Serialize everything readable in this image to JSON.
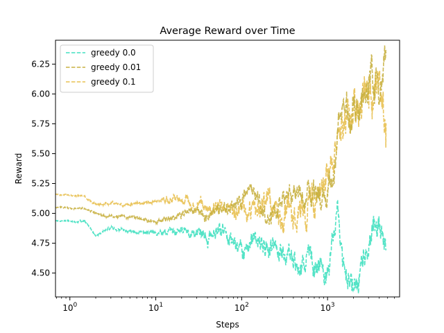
{
  "chart_data": {
    "type": "line",
    "title": "Average Reward over Time",
    "xlabel": "Steps",
    "ylabel": "Reward",
    "xscale": "log",
    "xlim": [
      0.68,
      6900
    ],
    "ylim": [
      4.3,
      6.45
    ],
    "grid": false,
    "legend_position": "top-left",
    "x_ticks": [
      {
        "value": 1,
        "base": "10",
        "exp": "0"
      },
      {
        "value": 10,
        "base": "10",
        "exp": "1"
      },
      {
        "value": 100,
        "base": "10",
        "exp": "2"
      },
      {
        "value": 1000,
        "base": "10",
        "exp": "3"
      }
    ],
    "y_ticks": [
      {
        "value": 4.5,
        "label": "4.50"
      },
      {
        "value": 4.75,
        "label": "4.75"
      },
      {
        "value": 5.0,
        "label": "5.00"
      },
      {
        "value": 5.25,
        "label": "5.25"
      },
      {
        "value": 5.5,
        "label": "5.50"
      },
      {
        "value": 5.75,
        "label": "5.75"
      },
      {
        "value": 6.0,
        "label": "6.00"
      },
      {
        "value": 6.25,
        "label": "6.25"
      }
    ],
    "series": [
      {
        "name": "greedy 0.0",
        "color": "#40E0C0",
        "anchors": [
          [
            0.68,
            4.94
          ],
          [
            1.5,
            4.93
          ],
          [
            2,
            4.81
          ],
          [
            3,
            4.88
          ],
          [
            5,
            4.85
          ],
          [
            10,
            4.84
          ],
          [
            20,
            4.85
          ],
          [
            30,
            4.84
          ],
          [
            40,
            4.77
          ],
          [
            50,
            4.85
          ],
          [
            60,
            4.86
          ],
          [
            70,
            4.82
          ],
          [
            80,
            4.77
          ],
          [
            100,
            4.7
          ],
          [
            130,
            4.76
          ],
          [
            170,
            4.75
          ],
          [
            200,
            4.7
          ],
          [
            250,
            4.72
          ],
          [
            300,
            4.67
          ],
          [
            400,
            4.62
          ],
          [
            500,
            4.58
          ],
          [
            600,
            4.63
          ],
          [
            700,
            4.55
          ],
          [
            800,
            4.6
          ],
          [
            900,
            4.5
          ],
          [
            1000,
            4.55
          ],
          [
            1100,
            4.72
          ],
          [
            1200,
            4.9
          ],
          [
            1300,
            5.02
          ],
          [
            1400,
            4.82
          ],
          [
            1500,
            4.6
          ],
          [
            1700,
            4.48
          ],
          [
            2000,
            4.4
          ],
          [
            2300,
            4.5
          ],
          [
            2600,
            4.6
          ],
          [
            3000,
            4.7
          ],
          [
            3300,
            4.85
          ],
          [
            3600,
            4.95
          ],
          [
            4000,
            4.9
          ],
          [
            4500,
            4.8
          ],
          [
            4800,
            4.72
          ]
        ],
        "noise": [
          0,
          0.005,
          0.015,
          0.06,
          0.08,
          0.1
        ]
      },
      {
        "name": "greedy 0.01",
        "color": "#C8B040",
        "anchors": [
          [
            0.68,
            5.05
          ],
          [
            1.5,
            5.04
          ],
          [
            2,
            5.0
          ],
          [
            3,
            4.98
          ],
          [
            5,
            4.97
          ],
          [
            10,
            4.93
          ],
          [
            20,
            4.99
          ],
          [
            30,
            5.02
          ],
          [
            40,
            4.98
          ],
          [
            60,
            5.04
          ],
          [
            80,
            5.06
          ],
          [
            100,
            5.1
          ],
          [
            130,
            5.22
          ],
          [
            150,
            5.15
          ],
          [
            200,
            4.93
          ],
          [
            250,
            5.04
          ],
          [
            300,
            5.1
          ],
          [
            400,
            5.15
          ],
          [
            500,
            5.08
          ],
          [
            600,
            5.15
          ],
          [
            800,
            5.2
          ],
          [
            1000,
            5.18
          ],
          [
            1100,
            5.25
          ],
          [
            1200,
            5.35
          ],
          [
            1300,
            5.7
          ],
          [
            1500,
            5.9
          ],
          [
            1800,
            5.8
          ],
          [
            2200,
            5.85
          ],
          [
            2600,
            5.95
          ],
          [
            3000,
            6.05
          ],
          [
            3500,
            6.1
          ],
          [
            4000,
            6.0
          ],
          [
            4500,
            6.2
          ],
          [
            4800,
            6.3
          ]
        ],
        "noise": [
          0,
          0.005,
          0.015,
          0.05,
          0.09,
          0.14
        ]
      },
      {
        "name": "greedy 0.1",
        "color": "#E8C050",
        "anchors": [
          [
            0.68,
            5.16
          ],
          [
            1.5,
            5.14
          ],
          [
            2,
            5.07
          ],
          [
            3,
            5.09
          ],
          [
            5,
            5.07
          ],
          [
            10,
            5.1
          ],
          [
            20,
            5.13
          ],
          [
            30,
            5.09
          ],
          [
            40,
            5.06
          ],
          [
            60,
            5.05
          ],
          [
            80,
            5.02
          ],
          [
            100,
            5.05
          ],
          [
            120,
            5.0
          ],
          [
            150,
            5.05
          ],
          [
            200,
            5.1
          ],
          [
            250,
            5.05
          ],
          [
            300,
            5.0
          ],
          [
            400,
            5.0
          ],
          [
            500,
            5.05
          ],
          [
            600,
            5.05
          ],
          [
            800,
            5.2
          ],
          [
            1000,
            5.35
          ],
          [
            1100,
            5.45
          ],
          [
            1300,
            5.55
          ],
          [
            1500,
            5.75
          ],
          [
            2000,
            5.8
          ],
          [
            2500,
            5.9
          ],
          [
            3000,
            6.05
          ],
          [
            3500,
            6.1
          ],
          [
            4000,
            6.0
          ],
          [
            4500,
            5.7
          ],
          [
            4800,
            5.7
          ]
        ],
        "noise": [
          0,
          0.005,
          0.015,
          0.06,
          0.12,
          0.18
        ]
      }
    ]
  }
}
